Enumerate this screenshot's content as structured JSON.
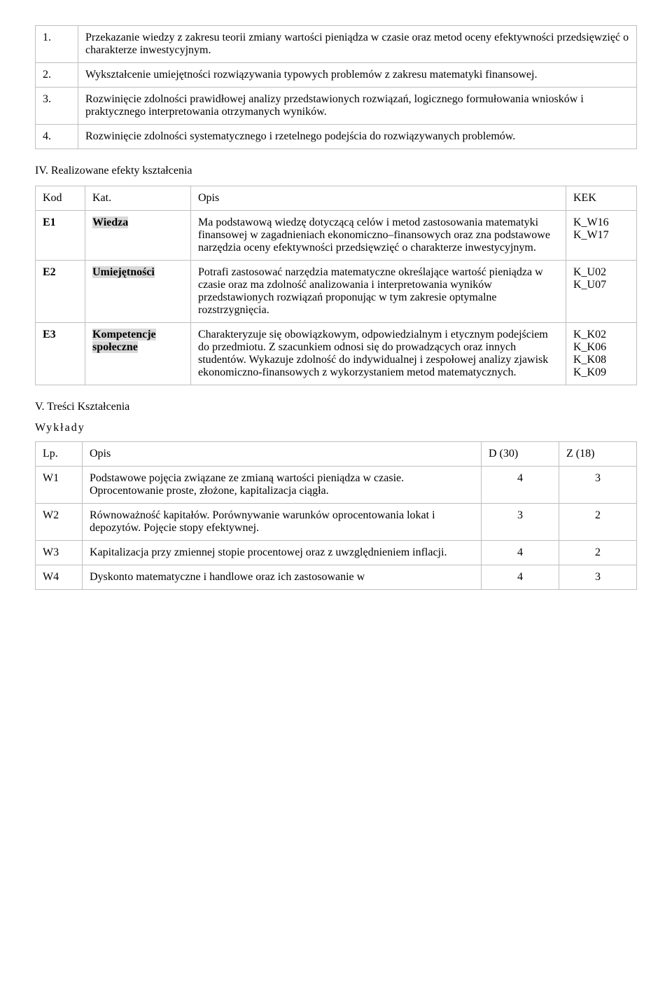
{
  "objectives": [
    {
      "num": "1.",
      "text": "Przekazanie wiedzy z zakresu teorii zmiany wartości pieniądza w czasie oraz metod oceny efektywności przedsięwzięć o charakterze inwestycyjnym."
    },
    {
      "num": "2.",
      "text": "Wykształcenie umiejętności rozwiązywania typowych problemów z zakresu matematyki finansowej."
    },
    {
      "num": "3.",
      "text": "Rozwinięcie zdolności prawidłowej analizy przedstawionych rozwiązań, logicznego formułowania wniosków i praktycznego interpretowania otrzymanych wyników."
    },
    {
      "num": "4.",
      "text": "Rozwinięcie zdolności systematycznego i rzetelnego podejścia do rozwiązywanych problemów."
    }
  ],
  "effects_heading": "IV. Realizowane efekty kształcenia",
  "effects_header": {
    "kod": "Kod",
    "kat": "Kat.",
    "opis": "Opis",
    "kek": "KEK"
  },
  "effects": [
    {
      "kod": "E1",
      "kat": "Wiedza",
      "opis": "Ma podstawową wiedzę dotyczącą celów i metod zastosowania matematyki finansowej w zagadnieniach ekonomiczno–finansowych oraz zna podstawowe narzędzia oceny efektywności przedsięwzięć o charakterze inwestycyjnym.",
      "kek": [
        "K_W16",
        "K_W17"
      ]
    },
    {
      "kod": "E2",
      "kat": "Umiejętności",
      "opis": "Potrafi zastosować narzędzia matematyczne określające wartość pieniądza w czasie oraz ma zdolność analizowania i interpretowania wyników przedstawionych rozwiązań proponując w tym zakresie optymalne rozstrzygnięcia.",
      "kek": [
        "K_U02",
        "K_U07"
      ]
    },
    {
      "kod": "E3",
      "kat": "Kompetencje społeczne",
      "opis": "Charakteryzuje się obowiązkowym, odpowiedzialnym i etycznym podejściem do przedmiotu. Z szacunkiem odnosi się do prowadzących oraz innych studentów. Wykazuje zdolność do indywidualnej i zespołowej analizy zjawisk ekonomiczno-finansowych z wykorzystaniem metod matematycznych.",
      "kek": [
        "K_K02",
        "K_K06",
        "K_K08",
        "K_K09"
      ]
    }
  ],
  "content_heading": "V. Treści Kształcenia",
  "lectures_label": "Wykłady",
  "lectures_header": {
    "lp": "Lp.",
    "opis": "Opis",
    "d": "D (30)",
    "z": "Z (18)"
  },
  "lectures": [
    {
      "lp": "W1",
      "opis": "Podstawowe pojęcia związane ze zmianą wartości pieniądza w czasie. Oprocentowanie proste, złożone, kapitalizacja ciągła.",
      "d": "4",
      "z": "3"
    },
    {
      "lp": "W2",
      "opis": "Równoważność kapitałów. Porównywanie warunków oprocentowania lokat i depozytów. Pojęcie stopy efektywnej.",
      "d": "3",
      "z": "2"
    },
    {
      "lp": "W3",
      "opis": "Kapitalizacja przy zmiennej stopie procentowej oraz z uwzględnieniem inflacji.",
      "d": "4",
      "z": "2"
    },
    {
      "lp": "W4",
      "opis": "Dyskonto matematyczne i handlowe oraz ich zastosowanie w",
      "d": "4",
      "z": "3"
    }
  ]
}
